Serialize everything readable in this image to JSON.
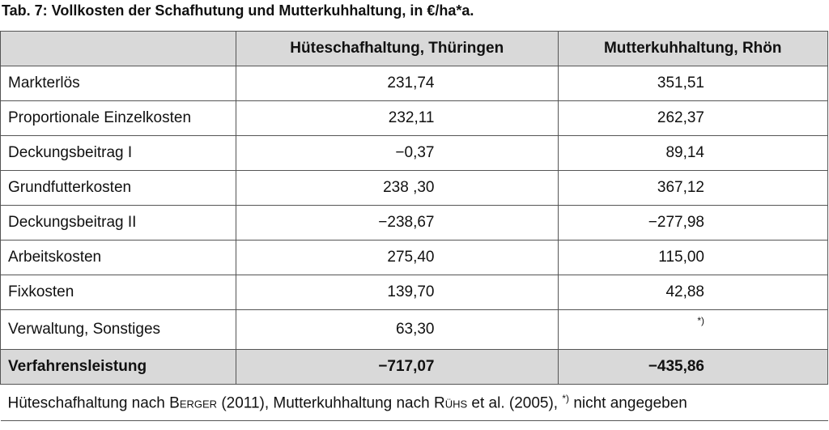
{
  "title": "Tab. 7: Vollkosten der Schafhutung und Mutterkuhhaltung, in €/ha*a.",
  "table": {
    "columns": [
      "Hüteschafhaltung, Thüringen",
      "Mutterkuhhaltung, Rhön"
    ],
    "rows": [
      [
        "Markterlös",
        "231,74",
        "351,51"
      ],
      [
        "Proportionale Einzelkosten",
        "232,11",
        "262,37"
      ],
      [
        "Deckungsbeitrag I",
        "−0,37",
        "89,14"
      ],
      [
        "Grundfutterkosten",
        "238 ,30",
        "367,12"
      ],
      [
        "Deckungsbeitrag II",
        "−238,67",
        "−277,98"
      ],
      [
        "Arbeitskosten",
        "275,40",
        "115,00"
      ],
      [
        "Fixkosten",
        "139,70",
        "42,88"
      ],
      [
        "Verwaltung, Sonstiges",
        "63,30",
        "*)"
      ]
    ],
    "total": [
      "Verfahrensleistung",
      "−717,07",
      "−435,86"
    ]
  },
  "footnote": [
    "Hüteschafhaltung nach ",
    "Berger",
    " (2011), Mutterkuhhaltung nach ",
    "Rühs",
    " et al. (2005), ",
    "*)",
    " nicht angegeben"
  ]
}
